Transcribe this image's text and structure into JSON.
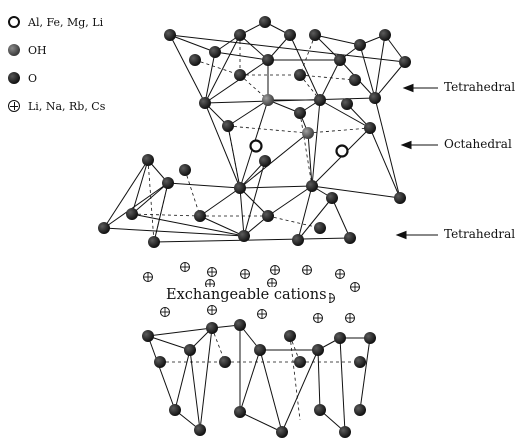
{
  "legend": {
    "items": [
      {
        "symbol": "open-circle",
        "label": "Al, Fe, Mg, Li"
      },
      {
        "symbol": "gray-sphere",
        "label": "OH"
      },
      {
        "symbol": "dark-sphere",
        "label": "O"
      },
      {
        "symbol": "crossed-circle",
        "label": "Li, Na, Rb, Cs"
      }
    ]
  },
  "labels": {
    "top_tetrahedral": "Tetrahedral",
    "octahedral": "Octahedral",
    "bottom_tetrahedral": "Tetrahedral",
    "exchangeable": "Exchangeable cations"
  },
  "colors": {
    "ink": "#111111",
    "oxygen": "#1e1e1e",
    "hydroxyl": "#6e6e6e"
  }
}
